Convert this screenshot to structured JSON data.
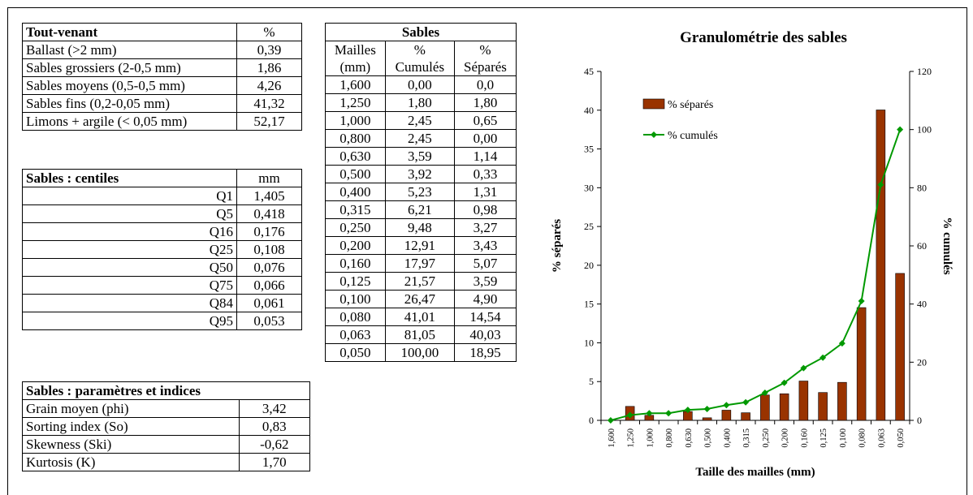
{
  "tout_venant": {
    "header": "Tout-venant",
    "unit": "%",
    "rows": [
      {
        "label": "Ballast (>2 mm)",
        "value": "0,39"
      },
      {
        "label": "Sables grossiers (2-0,5 mm)",
        "value": "1,86"
      },
      {
        "label": "Sables moyens (0,5-0,5 mm)",
        "value": "4,26"
      },
      {
        "label": "Sables fins (0,2-0,05 mm)",
        "value": "41,32"
      },
      {
        "label": "Limons + argile (< 0,05 mm)",
        "value": "52,17"
      }
    ]
  },
  "centiles": {
    "header": "Sables : centiles",
    "unit": "mm",
    "rows": [
      {
        "label": "Q1",
        "value": "1,405"
      },
      {
        "label": "Q5",
        "value": "0,418"
      },
      {
        "label": "Q16",
        "value": "0,176"
      },
      {
        "label": "Q25",
        "value": "0,108"
      },
      {
        "label": "Q50",
        "value": "0,076"
      },
      {
        "label": "Q75",
        "value": "0,066"
      },
      {
        "label": "Q84",
        "value": "0,061"
      },
      {
        "label": "Q95",
        "value": "0,053"
      }
    ]
  },
  "parametres": {
    "header": "Sables : paramètres et indices",
    "rows": [
      {
        "label": "Grain moyen (phi)",
        "value": "3,42"
      },
      {
        "label": "Sorting index (So)",
        "value": "0,83"
      },
      {
        "label": "Skewness (Ski)",
        "value": "-0,62"
      },
      {
        "label": "Kurtosis (K)",
        "value": "1,70"
      }
    ]
  },
  "sables": {
    "header": "Sables",
    "col1_line1": "Mailles",
    "col1_line2": "(mm)",
    "col2_line1": "%",
    "col2_line2": "Cumulés",
    "col3_line1": "%",
    "col3_line2": "Séparés",
    "rows": [
      {
        "maille": "1,600",
        "cumul": "0,00",
        "separe": "0,0"
      },
      {
        "maille": "1,250",
        "cumul": "1,80",
        "separe": "1,80"
      },
      {
        "maille": "1,000",
        "cumul": "2,45",
        "separe": "0,65"
      },
      {
        "maille": "0,800",
        "cumul": "2,45",
        "separe": "0,00"
      },
      {
        "maille": "0,630",
        "cumul": "3,59",
        "separe": "1,14"
      },
      {
        "maille": "0,500",
        "cumul": "3,92",
        "separe": "0,33"
      },
      {
        "maille": "0,400",
        "cumul": "5,23",
        "separe": "1,31"
      },
      {
        "maille": "0,315",
        "cumul": "6,21",
        "separe": "0,98"
      },
      {
        "maille": "0,250",
        "cumul": "9,48",
        "separe": "3,27"
      },
      {
        "maille": "0,200",
        "cumul": "12,91",
        "separe": "3,43"
      },
      {
        "maille": "0,160",
        "cumul": "17,97",
        "separe": "5,07"
      },
      {
        "maille": "0,125",
        "cumul": "21,57",
        "separe": "3,59"
      },
      {
        "maille": "0,100",
        "cumul": "26,47",
        "separe": "4,90"
      },
      {
        "maille": "0,080",
        "cumul": "41,01",
        "separe": "14,54"
      },
      {
        "maille": "0,063",
        "cumul": "81,05",
        "separe": "40,03"
      },
      {
        "maille": "0,050",
        "cumul": "100,00",
        "separe": "18,95"
      }
    ]
  },
  "chart_data": {
    "type": "bar",
    "title": "Granulométrie des sables",
    "xlabel": "Taille des mailles (mm)",
    "ylabel": "% séparés",
    "y2label": "% cumulés",
    "categories": [
      "1,600",
      "1,250",
      "1,000",
      "0,800",
      "0,630",
      "0,500",
      "0,400",
      "0,315",
      "0,250",
      "0,200",
      "0,160",
      "0,125",
      "0,100",
      "0,080",
      "0,063",
      "0,050"
    ],
    "series": [
      {
        "name": "% séparés",
        "type": "bar",
        "axis": "left",
        "color": "#993300",
        "values": [
          0,
          1.8,
          0.65,
          0,
          1.14,
          0.33,
          1.31,
          0.98,
          3.27,
          3.43,
          5.07,
          3.59,
          4.9,
          14.54,
          40.03,
          18.95
        ]
      },
      {
        "name": "% cumulés",
        "type": "line",
        "axis": "right",
        "color": "#009900",
        "values": [
          0,
          1.8,
          2.45,
          2.45,
          3.59,
          3.92,
          5.23,
          6.21,
          9.48,
          12.91,
          17.97,
          21.57,
          26.47,
          41.01,
          81.05,
          100.0
        ]
      }
    ],
    "ylim": [
      0,
      45
    ],
    "y2lim": [
      0,
      120
    ],
    "yticks": [
      "0",
      "5",
      "10",
      "15",
      "20",
      "25",
      "30",
      "35",
      "40",
      "45"
    ],
    "y2ticks": [
      "0",
      "20",
      "40",
      "60",
      "80",
      "100",
      "120"
    ],
    "legend": "top-left inside plot",
    "grid": false
  }
}
